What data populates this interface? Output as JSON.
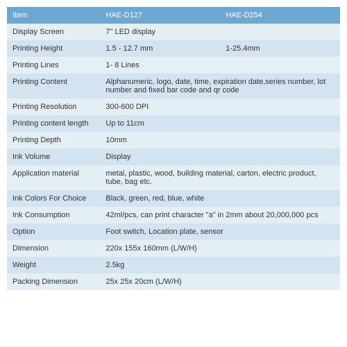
{
  "colors": {
    "header_bg": "#6ca8d2",
    "row_even_bg": "#e4eef5",
    "row_odd_bg": "#d3e3f0",
    "header_text": "#ffffff",
    "body_text": "#333333"
  },
  "table": {
    "header": [
      "Item",
      "HAE-D127",
      "HAE-D254"
    ],
    "rows": [
      {
        "label": "Display Screen",
        "v1": "7\" LED display",
        "v2": "",
        "span": true
      },
      {
        "label": "Printing Height",
        "v1": "1.5 - 12.7 mm",
        "v2": "1-25.4mm",
        "span": false
      },
      {
        "label": "Printing Lines",
        "v1": " 1- 8 Lines",
        "v2": "",
        "span": true
      },
      {
        "label": "Printing Content",
        "v1": "Alphanumeric, logo, date, time, expiration date,series number, lot number and fixed bar code and qr code",
        "v2": "",
        "span": true
      },
      {
        "label": "Printing Resolution",
        "v1": "300-600 DPI",
        "v2": "",
        "span": true
      },
      {
        "label": "Printing content length",
        "v1": "Up to 11cm",
        "v2": "",
        "span": true
      },
      {
        "label": "Printing Depth",
        "v1": "10mm",
        "v2": "",
        "span": true
      },
      {
        "label": "Ink Volume",
        "v1": "Display",
        "v2": "",
        "span": true
      },
      {
        "label": "Application material",
        "v1": "metal, plastic, wood, building material, carton, electric product, tube, bag etc.",
        "v2": "",
        "span": true
      },
      {
        "label": "Ink Colors For Choice",
        "v1": "Black, green, red, blue, white",
        "v2": "",
        "span": true
      },
      {
        "label": "Ink Consumption",
        "v1": "42ml/pcs, can print character \"a\" in 2mm about 20,000,000 pcs",
        "v2": "",
        "span": true
      },
      {
        "label": "Option",
        "v1": "Foot switch, Location plate, sensor",
        "v2": "",
        "span": true
      },
      {
        "label": "Dimension",
        "v1": "220x 155x 160mm  (L/W/H)",
        "v2": "",
        "span": true
      },
      {
        "label": "Weight",
        "v1": "2.5kg",
        "v2": "",
        "span": true
      },
      {
        "label": "Packing Dimension",
        "v1": "25x 25x 20cm (L/W/H)",
        "v2": "",
        "span": true
      }
    ]
  }
}
